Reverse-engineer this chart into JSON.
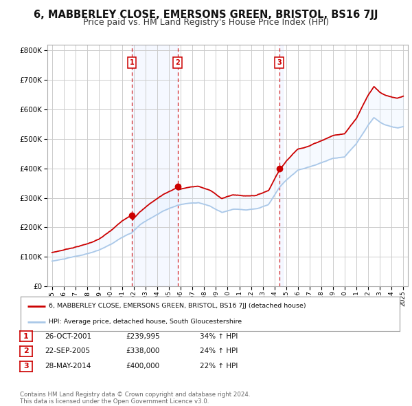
{
  "title": "6, MABBERLEY CLOSE, EMERSONS GREEN, BRISTOL, BS16 7JJ",
  "subtitle": "Price paid vs. HM Land Registry's House Price Index (HPI)",
  "title_fontsize": 10.5,
  "subtitle_fontsize": 9,
  "legend_line1": "6, MABBERLEY CLOSE, EMERSONS GREEN, BRISTOL, BS16 7JJ (detached house)",
  "legend_line2": "HPI: Average price, detached house, South Gloucestershire",
  "transactions": [
    {
      "label": "1",
      "date_x": 2001.82,
      "price": 239995,
      "text": "26-OCT-2001",
      "amount": "£239,995",
      "pct": "34% ↑ HPI"
    },
    {
      "label": "2",
      "date_x": 2005.72,
      "price": 338000,
      "text": "22-SEP-2005",
      "amount": "£338,000",
      "pct": "24% ↑ HPI"
    },
    {
      "label": "3",
      "date_x": 2014.41,
      "price": 400000,
      "text": "28-MAY-2014",
      "amount": "£400,000",
      "pct": "22% ↑ HPI"
    }
  ],
  "footer_line1": "Contains HM Land Registry data © Crown copyright and database right 2024.",
  "footer_line2": "This data is licensed under the Open Government Licence v3.0.",
  "red_color": "#cc0000",
  "blue_color": "#aac8e8",
  "fill_color": "#ddeeff",
  "vline_color": "#cc0000",
  "grid_color": "#cccccc",
  "background_color": "#ffffff",
  "ylim": [
    0,
    820000
  ],
  "xlim_start": 1994.6,
  "xlim_end": 2025.4
}
